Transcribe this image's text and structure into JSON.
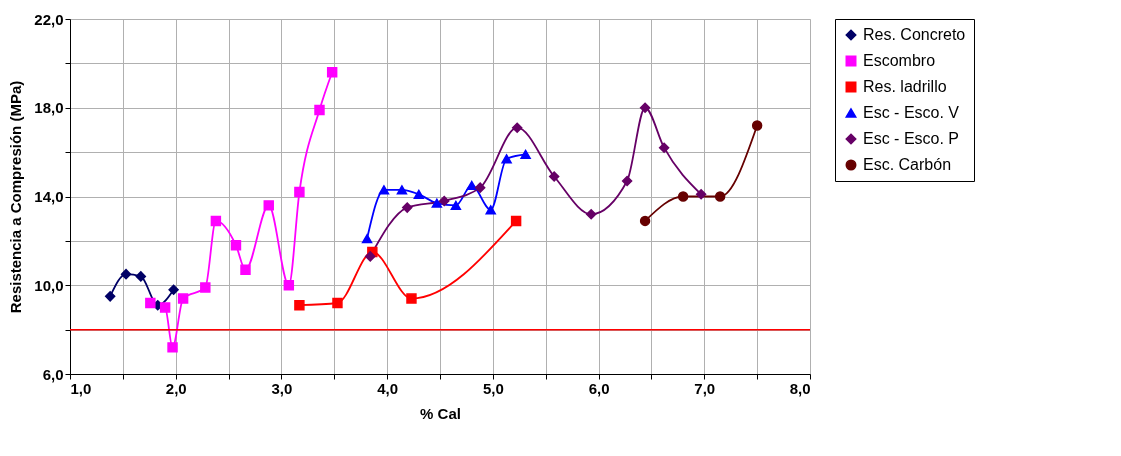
{
  "chart_data": {
    "type": "line",
    "xlabel": "% Cal",
    "ylabel": "Resistencia a Compresión (MPa)",
    "xlim": [
      1.0,
      8.0
    ],
    "xticks": [
      {
        "value": 1,
        "label": "1,0"
      },
      {
        "value": 1.5,
        "label": null
      },
      {
        "value": 2,
        "label": "2,0"
      },
      {
        "value": 2.5,
        "label": null
      },
      {
        "value": 3,
        "label": "3,0"
      },
      {
        "value": 3.5,
        "label": null
      },
      {
        "value": 4,
        "label": "4,0"
      },
      {
        "value": 4.5,
        "label": null
      },
      {
        "value": 5,
        "label": "5,0"
      },
      {
        "value": 5.5,
        "label": null
      },
      {
        "value": 6,
        "label": "6,0"
      },
      {
        "value": 6.5,
        "label": null
      },
      {
        "value": 7,
        "label": "7,0"
      },
      {
        "value": 7.5,
        "label": null
      },
      {
        "value": 8,
        "label": "8,0"
      }
    ],
    "ylim": [
      6.0,
      22.0
    ],
    "yticks": [
      {
        "value": 6,
        "label": "6,0"
      },
      {
        "value": 8,
        "label": null
      },
      {
        "value": 10,
        "label": "10,0"
      },
      {
        "value": 12,
        "label": null
      },
      {
        "value": 14,
        "label": "14,0"
      },
      {
        "value": 16,
        "label": null
      },
      {
        "value": 18,
        "label": "18,0"
      },
      {
        "value": 20,
        "label": null
      },
      {
        "value": 22,
        "label": "22,0"
      }
    ],
    "grid": true,
    "legend": "right",
    "line_style": "solid",
    "ref_lines": [
      {
        "axis": "y",
        "value": 8.0,
        "color": "#ff0000"
      }
    ],
    "series": [
      {
        "name": "Res. Concreto",
        "color": "#000066",
        "marker": "diamond",
        "x": [
          1.38,
          1.53,
          1.67,
          1.83,
          1.98
        ],
        "values": [
          9.5,
          10.5,
          10.4,
          9.1,
          9.8
        ]
      },
      {
        "name": "Escombro",
        "color": "#ff00ff",
        "marker": "square",
        "x": [
          1.76,
          1.9,
          1.97,
          2.07,
          2.28,
          2.38,
          2.57,
          2.66,
          2.88,
          3.07,
          3.17,
          3.36,
          3.48
        ],
        "values": [
          9.2,
          9.0,
          7.2,
          9.4,
          9.9,
          12.9,
          11.8,
          10.7,
          13.6,
          10.0,
          14.2,
          17.9,
          19.6
        ]
      },
      {
        "name": "Res. ladrillo",
        "color": "#ff0000",
        "marker": "square",
        "x": [
          3.17,
          3.53,
          3.86,
          4.23,
          5.22
        ],
        "values": [
          9.1,
          9.2,
          11.5,
          9.4,
          12.9
        ]
      },
      {
        "name": "Esc - Esco. V",
        "color": "#0000ff",
        "marker": "triangle",
        "x": [
          3.81,
          3.97,
          4.14,
          4.3,
          4.47,
          4.65,
          4.8,
          4.98,
          5.13,
          5.31
        ],
        "values": [
          12.1,
          14.3,
          14.3,
          14.1,
          13.7,
          13.6,
          14.5,
          13.4,
          15.7,
          15.9
        ]
      },
      {
        "name": "Esc - Esco. P",
        "color": "#660066",
        "marker": "diamond",
        "x": [
          3.84,
          4.19,
          4.54,
          4.88,
          5.23,
          5.58,
          5.93,
          6.27,
          6.44,
          6.62,
          6.97
        ],
        "values": [
          11.3,
          13.5,
          13.8,
          14.4,
          17.1,
          14.9,
          13.2,
          14.7,
          18.0,
          16.2,
          14.1
        ]
      },
      {
        "name": "Esc. Carbón",
        "color": "#660000",
        "marker": "circle",
        "x": [
          6.44,
          6.8,
          7.15,
          7.5
        ],
        "values": [
          12.9,
          14.0,
          14.0,
          17.2
        ]
      }
    ]
  }
}
